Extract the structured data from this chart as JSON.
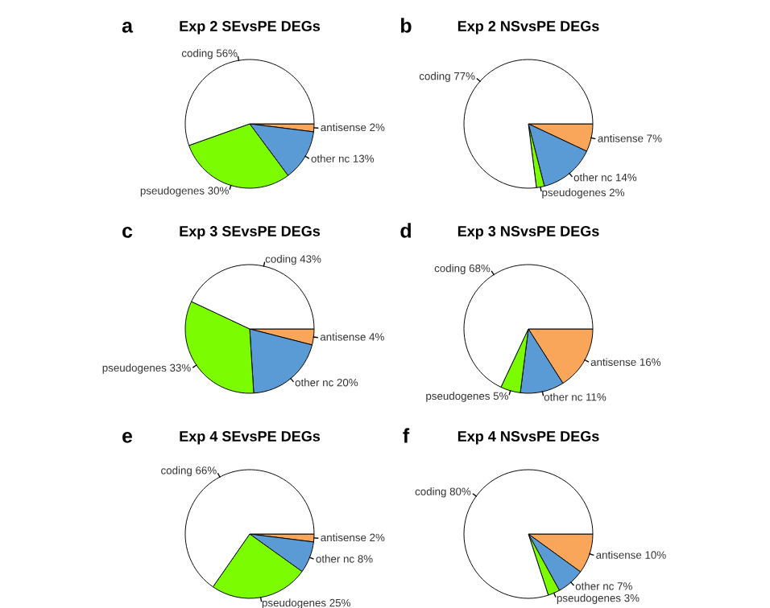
{
  "chart_data": [
    {
      "type": "pie",
      "title": "Exp 2 SEvsPE DEGs",
      "annotations": [
        "a"
      ],
      "categories": [
        "antisense",
        "other nc",
        "pseudogenes",
        "coding"
      ],
      "values": [
        2,
        13,
        30,
        56
      ],
      "value_labels": [
        "2%",
        "13%",
        "30%",
        "56%"
      ],
      "colors": [
        "#f9a65a",
        "#5b9bd5",
        "#7cfc00",
        "#ffffff"
      ]
    },
    {
      "type": "pie",
      "title": "Exp 2 NSvsPE DEGs",
      "annotations": [
        "b"
      ],
      "categories": [
        "antisense",
        "other nc",
        "pseudogenes",
        "coding"
      ],
      "values": [
        7,
        14,
        2,
        77
      ],
      "value_labels": [
        "7%",
        "14%",
        "2%",
        "77%"
      ],
      "colors": [
        "#f9a65a",
        "#5b9bd5",
        "#7cfc00",
        "#ffffff"
      ]
    },
    {
      "type": "pie",
      "title": "Exp 3 SEvsPE DEGs",
      "annotations": [
        "c"
      ],
      "categories": [
        "antisense",
        "other nc",
        "pseudogenes",
        "coding"
      ],
      "values": [
        4,
        20,
        33,
        43
      ],
      "value_labels": [
        "4%",
        "20%",
        "33%",
        "43%"
      ],
      "colors": [
        "#f9a65a",
        "#5b9bd5",
        "#7cfc00",
        "#ffffff"
      ]
    },
    {
      "type": "pie",
      "title": "Exp 3 NSvsPE DEGs",
      "annotations": [
        "d"
      ],
      "categories": [
        "antisense",
        "other nc",
        "pseudogenes",
        "coding"
      ],
      "values": [
        16,
        11,
        5,
        68
      ],
      "value_labels": [
        "16%",
        "11%",
        "5%",
        "68%"
      ],
      "colors": [
        "#f9a65a",
        "#5b9bd5",
        "#7cfc00",
        "#ffffff"
      ]
    },
    {
      "type": "pie",
      "title": "Exp 4 SEvsPE DEGs",
      "annotations": [
        "e"
      ],
      "categories": [
        "antisense",
        "other nc",
        "pseudogenes",
        "coding"
      ],
      "values": [
        2,
        8,
        25,
        66
      ],
      "value_labels": [
        "2%",
        "8%",
        "25%",
        "66%"
      ],
      "colors": [
        "#f9a65a",
        "#5b9bd5",
        "#7cfc00",
        "#ffffff"
      ]
    },
    {
      "type": "pie",
      "title": "Exp 4 NSvsPE DEGs",
      "annotations": [
        "f"
      ],
      "categories": [
        "antisense",
        "other nc",
        "pseudogenes",
        "coding"
      ],
      "values": [
        10,
        7,
        3,
        80
      ],
      "value_labels": [
        "10%",
        "7%",
        "3%",
        "80%"
      ],
      "colors": [
        "#f9a65a",
        "#5b9bd5",
        "#7cfc00",
        "#ffffff"
      ]
    }
  ]
}
